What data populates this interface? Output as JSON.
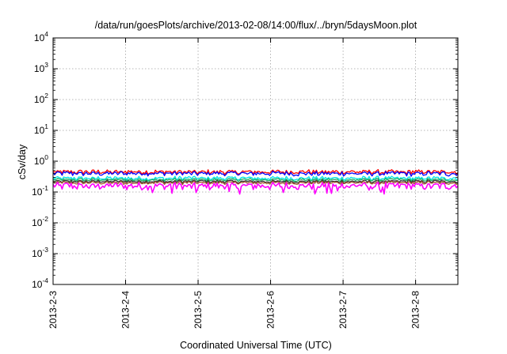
{
  "chart_data": {
    "type": "line",
    "title": "/data/run/goesPlots/archive/2013-02-08/14:00/flux/../bryn/5daysMoon.plot",
    "xlabel": "Coordinated Universal Time (UTC)",
    "ylabel": "cSv/day",
    "yscale": "log",
    "ylim": [
      0.0001,
      10000
    ],
    "y_ticks": [
      {
        "base": "10",
        "exp": "-4",
        "value": 0.0001
      },
      {
        "base": "10",
        "exp": "-3",
        "value": 0.001
      },
      {
        "base": "10",
        "exp": "-2",
        "value": 0.01
      },
      {
        "base": "10",
        "exp": "-1",
        "value": 0.1
      },
      {
        "base": "10",
        "exp": "0",
        "value": 1
      },
      {
        "base": "10",
        "exp": "1",
        "value": 10
      },
      {
        "base": "10",
        "exp": "2",
        "value": 100
      },
      {
        "base": "10",
        "exp": "3",
        "value": 1000
      },
      {
        "base": "10",
        "exp": "4",
        "value": 10000
      }
    ],
    "xlim": [
      "2013-2-3",
      "2013-2-8 14:00"
    ],
    "x_ticks": [
      "2013-2-3",
      "2013-2-4",
      "2013-2-5",
      "2013-2-6",
      "2013-2-7",
      "2013-2-8"
    ],
    "grid": true,
    "series": [
      {
        "color": "#ff0000",
        "level": 0.45,
        "amp": 0.1
      },
      {
        "color": "#0000ff",
        "level": 0.4,
        "amp": 0.1
      },
      {
        "color": "#00e5e5",
        "level": 0.28,
        "amp": 0.09
      },
      {
        "color": "#20b060",
        "level": 0.25,
        "amp": 0.07
      },
      {
        "color": "#303030",
        "level": 0.22,
        "amp": 0.07
      },
      {
        "color": "#a0522d",
        "level": 0.2,
        "amp": 0.07
      },
      {
        "color": "#ff00ff",
        "level": 0.16,
        "amp": 0.16
      }
    ]
  }
}
